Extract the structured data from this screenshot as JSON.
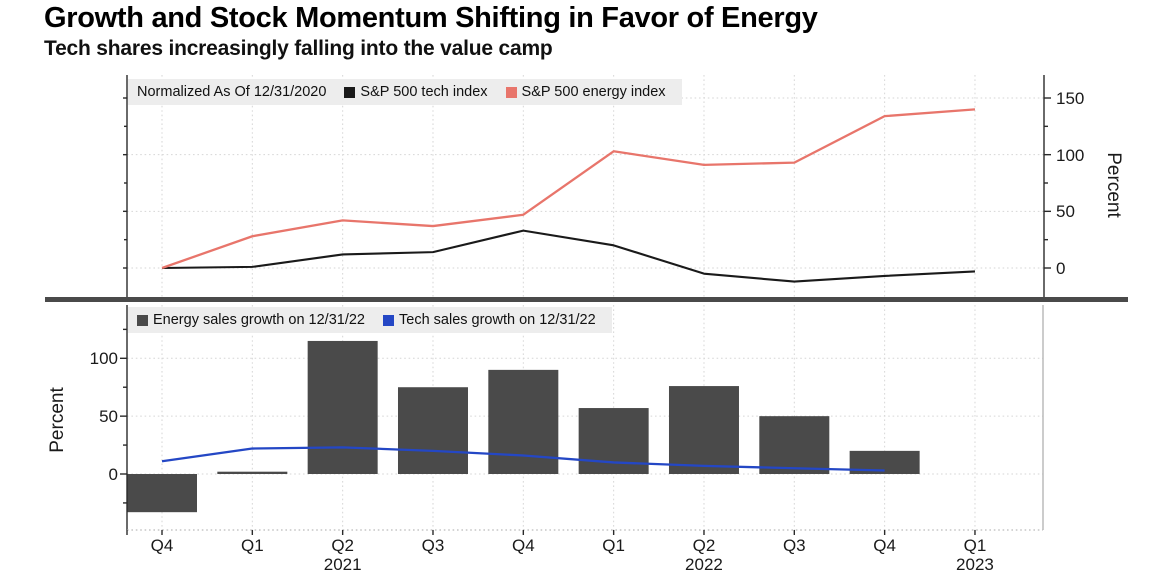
{
  "title": "Growth and Stock Momentum Shifting in Favor of Energy",
  "subtitle": "Tech shares increasingly falling into the value camp",
  "colors": {
    "tech_line": "#1a1a1a",
    "energy_line": "#e8756b",
    "energy_bar": "#4a4a4a",
    "tech_sales_line": "#2447c5",
    "legend_bg": "#ededed",
    "separator": "#4a4a4a",
    "grid": "#d6d6d6"
  },
  "chart_data": [
    {
      "type": "line",
      "note": "Normalized As Of 12/31/2020",
      "categories": [
        "Q4 2020",
        "Q1 2021",
        "Q2 2021",
        "Q3 2021",
        "Q4 2021",
        "Q1 2022",
        "Q2 2022",
        "Q3 2022",
        "Q4 2022",
        "Q1 2023"
      ],
      "series": [
        {
          "name": "S&P 500 tech index",
          "color": "#1a1a1a",
          "values": [
            0,
            1,
            12,
            14,
            33,
            20,
            -5,
            -12,
            -7,
            -3
          ]
        },
        {
          "name": "S&P 500 energy index",
          "color": "#e8756b",
          "values": [
            0,
            28,
            42,
            37,
            47,
            103,
            91,
            93,
            134,
            140
          ]
        }
      ],
      "ylabel": "Percent",
      "yticks": [
        0,
        50,
        100,
        150
      ],
      "ylim": [
        -25,
        170
      ],
      "grid": true,
      "axis_side": "right",
      "legend_position": "top-left"
    },
    {
      "type": "bar",
      "categories": [
        "Q4 2020",
        "Q1 2021",
        "Q2 2021",
        "Q3 2021",
        "Q4 2021",
        "Q1 2022",
        "Q2 2022",
        "Q3 2022",
        "Q4 2022",
        "Q1 2023"
      ],
      "series": [
        {
          "name": "Energy sales growth on 12/31/22",
          "type": "bar",
          "color": "#4a4a4a",
          "values": [
            -33,
            2,
            115,
            75,
            90,
            57,
            76,
            50,
            20,
            null
          ]
        },
        {
          "name": "Tech sales growth on 12/31/22",
          "type": "line",
          "color": "#2447c5",
          "values": [
            11,
            22,
            23,
            20,
            16,
            10,
            7,
            5,
            3,
            null
          ]
        }
      ],
      "ylabel": "Percent",
      "yticks": [
        0,
        50,
        100
      ],
      "ylim": [
        -48,
        146
      ],
      "grid": true,
      "axis_side": "left",
      "legend_position": "top-left"
    }
  ],
  "x_axis": {
    "quarter_labels": [
      "Q4",
      "Q1",
      "Q2",
      "Q3",
      "Q4",
      "Q1",
      "Q2",
      "Q3",
      "Q4",
      "Q1"
    ],
    "year_labels": [
      {
        "label": "2021",
        "index": 2
      },
      {
        "label": "2022",
        "index": 6
      },
      {
        "label": "2023",
        "index": 9
      }
    ]
  }
}
